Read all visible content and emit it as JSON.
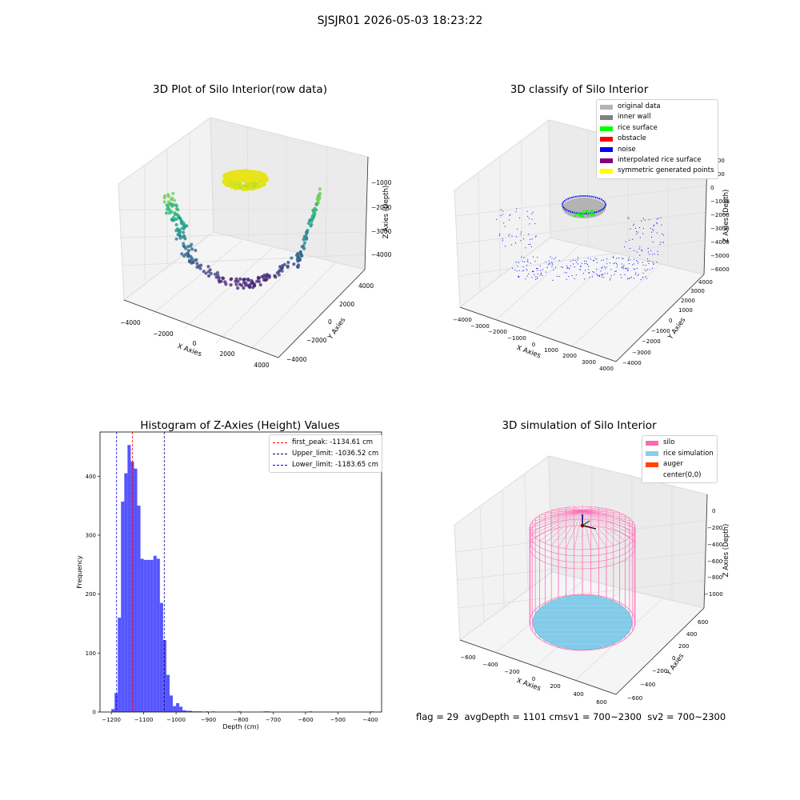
{
  "suptitle": "SJSJR01 2026-05-03 18:23:22",
  "chart_data": [
    {
      "type": "scatter",
      "panel": "top-left",
      "title": "3D Plot of Silo Interior(row data)",
      "xlabel": "X Axies",
      "ylabel": "Y Axies",
      "zlabel": "Z Axies (Depth)",
      "xticks": [
        "−4000",
        "−2000",
        "0",
        "2000",
        "4000"
      ],
      "yticks": [
        "−4000",
        "−2000",
        "0",
        "2000",
        "4000"
      ],
      "zticks": [
        "−1000",
        "−2000",
        "−3000",
        "−4000"
      ],
      "colormap": "viridis",
      "colors": {
        "high": "#e3e418",
        "mid": "#2ab07f",
        "low": "#440154"
      }
    },
    {
      "type": "scatter",
      "panel": "top-right",
      "title": "3D classify of Silo Interior",
      "xlabel": "X Axies",
      "ylabel": "Y Axies",
      "zlabel": "Z Axies (Depth)",
      "xticks": [
        "−4000",
        "−3000",
        "−2000",
        "−1000",
        "0",
        "1000",
        "2000",
        "3000",
        "4000"
      ],
      "yticks": [
        "−4000",
        "−3000",
        "−2000",
        "−1000",
        "0",
        "1000",
        "2000",
        "3000",
        "4000"
      ],
      "zticks": [
        "2000",
        "1000",
        "0",
        "−1000",
        "−2000",
        "−3000",
        "−4000",
        "−5000",
        "−6000"
      ],
      "legend_position": "top-right",
      "legend": [
        {
          "label": "original data",
          "color": "#b3b3b3"
        },
        {
          "label": "inner wall",
          "color": "#808080"
        },
        {
          "label": "rice surface",
          "color": "#00ff00"
        },
        {
          "label": "obstacle",
          "color": "#ff0000"
        },
        {
          "label": "noise",
          "color": "#0000ff"
        },
        {
          "label": "interpolated rice surface",
          "color": "#800080"
        },
        {
          "label": "symmetric generated points",
          "color": "#ffff00"
        }
      ]
    },
    {
      "type": "bar",
      "panel": "bottom-left",
      "title": "Histogram of Z-Axies (Height) Values",
      "xlabel": "Depth (cm)",
      "ylabel": "Frequency",
      "xlim": [
        -1235,
        -365
      ],
      "ylim": [
        0,
        475
      ],
      "xticks": [
        -1200,
        -1100,
        -1000,
        -900,
        -800,
        -700,
        -600,
        -500,
        -400
      ],
      "xtick_labels": [
        "−1200",
        "−1100",
        "−1000",
        "−900",
        "−800",
        "−700",
        "−600",
        "−500",
        "−400"
      ],
      "yticks": [
        0,
        100,
        200,
        300,
        400
      ],
      "bin_width": 10,
      "bins": [
        {
          "x": -1200,
          "v": 5
        },
        {
          "x": -1190,
          "v": 32
        },
        {
          "x": -1180,
          "v": 160
        },
        {
          "x": -1170,
          "v": 357
        },
        {
          "x": -1160,
          "v": 405
        },
        {
          "x": -1150,
          "v": 453
        },
        {
          "x": -1140,
          "v": 425
        },
        {
          "x": -1130,
          "v": 413
        },
        {
          "x": -1120,
          "v": 350
        },
        {
          "x": -1110,
          "v": 260
        },
        {
          "x": -1100,
          "v": 258
        },
        {
          "x": -1090,
          "v": 258
        },
        {
          "x": -1080,
          "v": 258
        },
        {
          "x": -1070,
          "v": 265
        },
        {
          "x": -1060,
          "v": 260
        },
        {
          "x": -1050,
          "v": 185
        },
        {
          "x": -1040,
          "v": 122
        },
        {
          "x": -1030,
          "v": 63
        },
        {
          "x": -1020,
          "v": 28
        },
        {
          "x": -1010,
          "v": 10
        },
        {
          "x": -1000,
          "v": 15
        },
        {
          "x": -990,
          "v": 9
        },
        {
          "x": -980,
          "v": 3
        },
        {
          "x": -970,
          "v": 2
        },
        {
          "x": -960,
          "v": 2
        },
        {
          "x": -950,
          "v": 1
        },
        {
          "x": -940,
          "v": 1
        },
        {
          "x": -930,
          "v": 1
        },
        {
          "x": -910,
          "v": 1
        },
        {
          "x": -890,
          "v": 1
        },
        {
          "x": -810,
          "v": 1
        },
        {
          "x": -730,
          "v": 1
        },
        {
          "x": -720,
          "v": 1
        },
        {
          "x": -590,
          "v": 1
        },
        {
          "x": -400,
          "v": 1
        }
      ],
      "bar_color": "#4d4dff",
      "vlines": [
        {
          "label": "first_peak: -1134.61 cm",
          "x": -1134.61,
          "color": "#ff0000"
        },
        {
          "label": "Upper_limit: -1036.52 cm",
          "x": -1036.52,
          "color": "#00008b"
        },
        {
          "label": "Lower_limit: -1183.65 cm",
          "x": -1183.65,
          "color": "#0000ff"
        }
      ],
      "legend_position": "top-right"
    },
    {
      "type": "scatter",
      "panel": "bottom-right",
      "title": "3D simulation of Silo Interior",
      "xlabel": "X Axies",
      "ylabel": "Y Axies",
      "zlabel": "Z Axies (Depth)",
      "xticks": [
        "−600",
        "−400",
        "−200",
        "0",
        "200",
        "400",
        "600"
      ],
      "yticks": [
        "−600",
        "−400",
        "−200",
        "0",
        "200",
        "400",
        "600"
      ],
      "zticks": [
        "0",
        "−200",
        "−400",
        "−600",
        "−800",
        "−1000"
      ],
      "legend_position": "top-right",
      "legend": [
        {
          "label": "silo",
          "color": "#ff69b4"
        },
        {
          "label": "rice simulation",
          "color": "#87ceeb"
        },
        {
          "label": "auger",
          "color": "#ff4500"
        },
        {
          "label": "center(0,0)",
          "color": "#ffffff"
        }
      ]
    }
  ],
  "footer": {
    "text": "flag = 29  avgDepth = 1101 cmsv1 = 700~2300  sv2 = 700~2300"
  }
}
